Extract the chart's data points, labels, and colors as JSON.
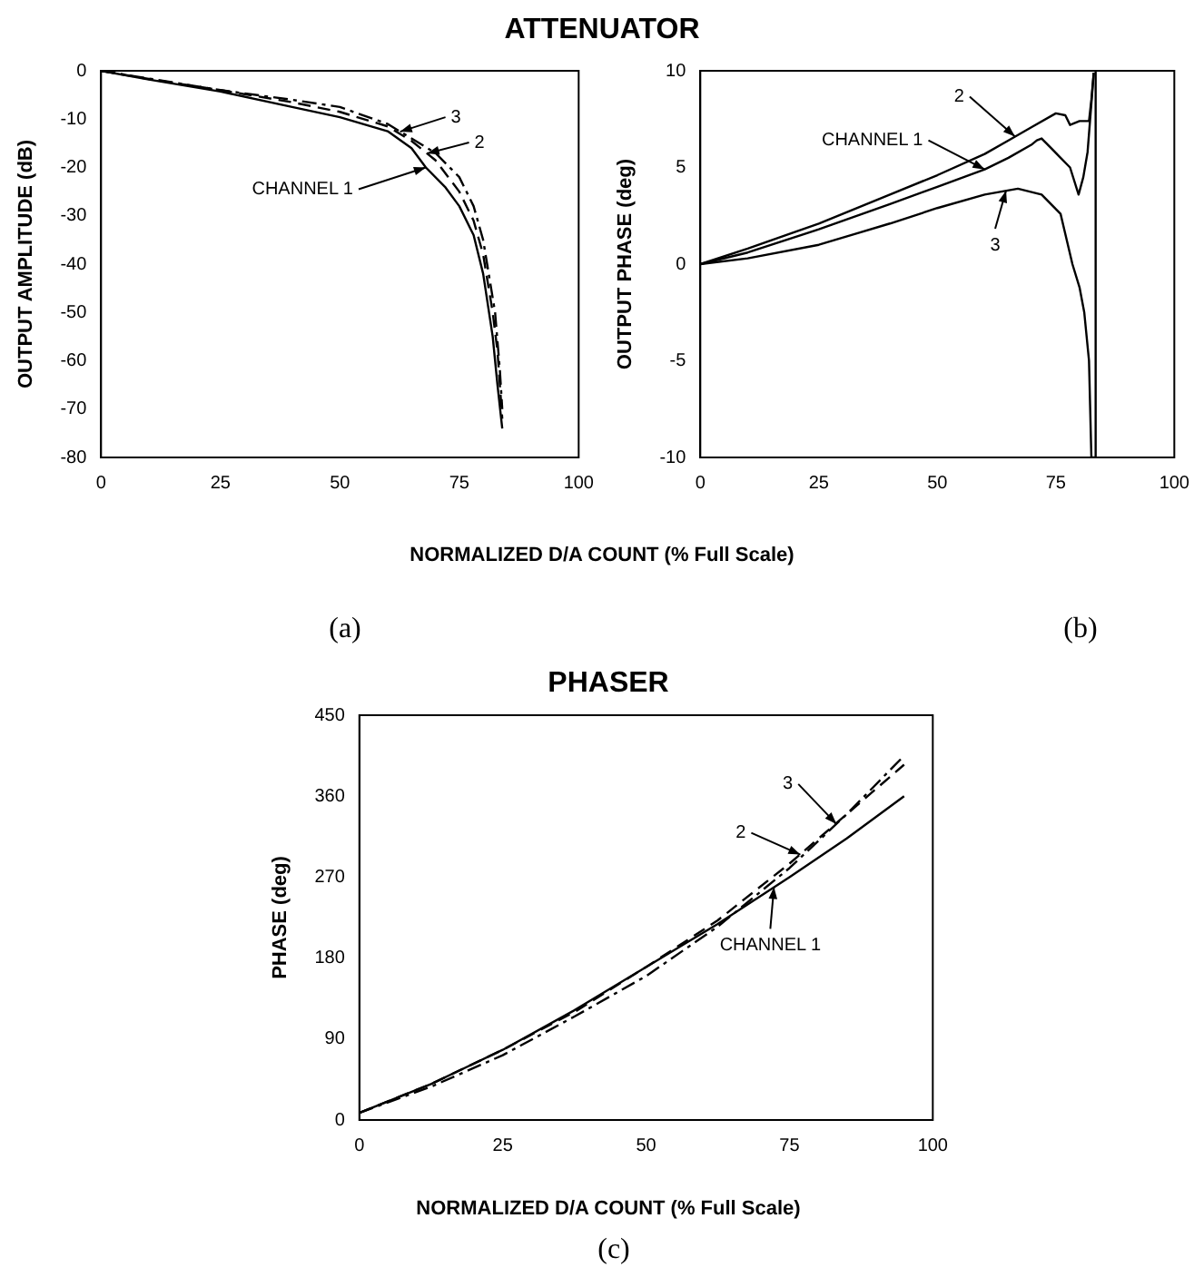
{
  "chart_data": [
    {
      "type": "line",
      "title": "ATTENUATOR",
      "xlabel": "NORMALIZED D/A COUNT (% Full Scale)",
      "ylabel": "OUTPUT AMPLITUDE (dB)",
      "xlim": [
        0,
        100
      ],
      "ylim": [
        -80,
        0
      ],
      "xticks": [
        0,
        25,
        50,
        75,
        100
      ],
      "yticks": [
        -80,
        -70,
        -60,
        -50,
        -40,
        -30,
        -20,
        -10,
        0
      ],
      "series": [
        {
          "color": "#000000",
          "line_style": "solid",
          "x": [
            0,
            10,
            25,
            40,
            50,
            60,
            65,
            68,
            72,
            75,
            78,
            80,
            82,
            83,
            84
          ],
          "values": [
            0,
            -1.8,
            -4.3,
            -7.5,
            -9.6,
            -12.5,
            -16,
            -20,
            -24,
            -28,
            -34,
            -42,
            -55,
            -65,
            -74
          ]
        },
        {
          "color": "#000000",
          "line_style": "dashed",
          "x": [
            0,
            10,
            25,
            40,
            50,
            60,
            65,
            70,
            75,
            78,
            80,
            82,
            83,
            83.5,
            84
          ],
          "values": [
            0,
            -1.7,
            -4,
            -6.5,
            -8.5,
            -11.5,
            -14.5,
            -18.5,
            -25,
            -31,
            -38,
            -50,
            -58,
            -65,
            -72
          ]
        },
        {
          "color": "#000000",
          "line_style": "dotted",
          "x": [
            0,
            10,
            25,
            40,
            50,
            60,
            65,
            70,
            75,
            78,
            80,
            82.5,
            83.5,
            84
          ],
          "values": [
            0,
            -1.6,
            -4,
            -6,
            -7.5,
            -11,
            -14,
            -17,
            -22,
            -28,
            -35,
            -50,
            -62,
            -70
          ]
        }
      ],
      "annotations": [
        {
          "text": "3",
          "x": 62.6,
          "y": -12.6
        },
        {
          "text": "2",
          "x": 68.3,
          "y": -17.1
        },
        {
          "text": "CHANNEL 1",
          "x": 68,
          "y": -20
        },
        "(a)"
      ]
    },
    {
      "type": "line",
      "ylabel": "OUTPUT PHASE (deg)",
      "xlim": [
        0,
        100
      ],
      "ylim": [
        -10,
        10
      ],
      "xticks": [
        0,
        25,
        50,
        75,
        100
      ],
      "yticks": [
        -10,
        -5,
        0,
        5,
        10
      ],
      "series": [
        {
          "color": "#000000",
          "line_style": "solid",
          "x": [
            0,
            10,
            25,
            40,
            50,
            60,
            65,
            70,
            71,
            72,
            74,
            76,
            78,
            79.8,
            80.8,
            81.7,
            82.5,
            83
          ],
          "values": [
            0,
            0.6,
            1.8,
            3.1,
            4,
            4.9,
            5.5,
            6.2,
            6.4,
            6.5,
            6,
            5.5,
            5,
            3.6,
            4.5,
            5.8,
            8.3,
            9.9
          ]
        },
        {
          "color": "#000000",
          "line_style": "solid",
          "x": [
            0,
            10,
            25,
            40,
            50,
            60,
            65,
            70,
            75,
            77,
            78,
            80,
            82,
            82.5,
            83
          ],
          "values": [
            0,
            0.8,
            2.1,
            3.6,
            4.6,
            5.7,
            6.4,
            7.1,
            7.8,
            7.7,
            7.2,
            7.4,
            7.4,
            8.5,
            9.9
          ]
        },
        {
          "color": "#000000",
          "line_style": "solid",
          "x": [
            0,
            10,
            25,
            40,
            50,
            60,
            67,
            72,
            76,
            78.5,
            80,
            81,
            82,
            82.5,
            83.4,
            83.4
          ],
          "values": [
            0,
            0.3,
            1,
            2.1,
            2.9,
            3.6,
            3.9,
            3.6,
            2.6,
            0,
            -1.2,
            -2.5,
            -5,
            -10,
            -10,
            10
          ]
        }
      ],
      "annotations": [
        {
          "text": "2",
          "x": 66.4,
          "y": 6.6
        },
        {
          "text": "CHANNEL 1",
          "x": 60,
          "y": 4.9
        },
        {
          "text": "3",
          "x": 64.5,
          "y": 3.8
        },
        "(b)"
      ]
    },
    {
      "type": "line",
      "title": "PHASER",
      "xlabel": "NORMALIZED D/A COUNT (% Full Scale)",
      "ylabel": "PHASE (deg)",
      "xlim": [
        0,
        100
      ],
      "ylim": [
        0,
        450
      ],
      "xticks": [
        0,
        25,
        50,
        75,
        100
      ],
      "yticks": [
        0,
        90,
        180,
        270,
        360,
        450
      ],
      "series": [
        {
          "color": "#000000",
          "line_style": "solid",
          "x": [
            0,
            12.5,
            25,
            37.5,
            50,
            62.5,
            75,
            85,
            95
          ],
          "values": [
            8,
            40,
            78,
            122,
            170,
            218,
            270,
            313,
            360
          ]
        },
        {
          "color": "#000000",
          "line_style": "dashed",
          "x": [
            0,
            12.5,
            25,
            37.5,
            50,
            62.5,
            75,
            85,
            95
          ],
          "values": [
            8,
            40,
            78,
            120,
            170,
            222,
            285,
            340,
            395
          ]
        },
        {
          "color": "#000000",
          "line_style": "dotted",
          "x": [
            0,
            12.5,
            25,
            37.5,
            50,
            62.5,
            75,
            85,
            95
          ],
          "values": [
            8,
            37,
            72,
            115,
            160,
            215,
            280,
            340,
            405
          ]
        }
      ],
      "annotations": [
        {
          "text": "3",
          "x": 83.2,
          "y": 329
        },
        {
          "text": "2",
          "x": 76.9,
          "y": 295
        },
        {
          "text": "CHANNEL 1",
          "x": 72.3,
          "y": 259
        },
        "(c)"
      ]
    }
  ]
}
